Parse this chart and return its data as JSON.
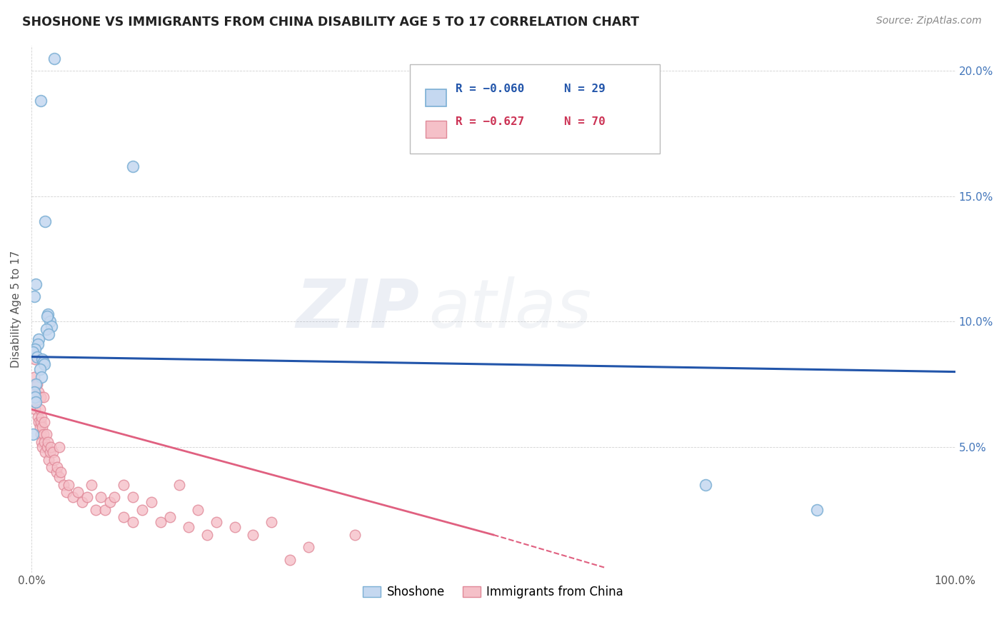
{
  "title": "SHOSHONE VS IMMIGRANTS FROM CHINA DISABILITY AGE 5 TO 17 CORRELATION CHART",
  "source": "Source: ZipAtlas.com",
  "ylabel": "Disability Age 5 to 17",
  "xlim": [
    0,
    100
  ],
  "ylim": [
    0,
    21
  ],
  "ytick_values": [
    0,
    5,
    10,
    15,
    20
  ],
  "ytick_labels": [
    "",
    "5.0%",
    "10.0%",
    "15.0%",
    "20.0%"
  ],
  "xtick_values": [
    0,
    100
  ],
  "xtick_labels": [
    "0.0%",
    "100.0%"
  ],
  "legend_blue_r": "R = −0.060",
  "legend_blue_n": "N = 29",
  "legend_pink_r": "R = −0.627",
  "legend_pink_n": "N = 70",
  "legend_label_blue": "Shoshone",
  "legend_label_pink": "Immigrants from China",
  "watermark_zip": "ZIP",
  "watermark_atlas": "atlas",
  "blue_dot_face": "#C5D8F0",
  "blue_dot_edge": "#7BAFD4",
  "pink_dot_face": "#F5C0C8",
  "pink_dot_edge": "#E08898",
  "line_blue_color": "#2255AA",
  "line_pink_color": "#E06080",
  "blue_line_x0": 0,
  "blue_line_y0": 8.6,
  "blue_line_x1": 100,
  "blue_line_y1": 8.0,
  "pink_line_x0": 0,
  "pink_line_y0": 6.5,
  "pink_line_x1_solid": 50,
  "pink_line_y1_solid": 1.5,
  "pink_line_x1_dash": 62,
  "pink_line_y1_dash": 0.2,
  "shoshone_x": [
    2.5,
    1.0,
    11.0,
    1.5,
    0.5,
    0.3,
    1.8,
    2.0,
    1.7,
    2.2,
    1.6,
    1.9,
    0.8,
    0.7,
    0.4,
    0.2,
    0.6,
    1.2,
    1.3,
    1.4,
    0.9,
    1.1,
    0.5,
    0.3,
    0.4,
    0.5,
    0.2,
    73.0,
    85.0
  ],
  "shoshone_y": [
    20.5,
    18.8,
    16.2,
    14.0,
    11.5,
    11.0,
    10.3,
    10.0,
    10.2,
    9.8,
    9.7,
    9.5,
    9.3,
    9.1,
    8.9,
    8.8,
    8.6,
    8.5,
    8.4,
    8.3,
    8.1,
    7.8,
    7.5,
    7.2,
    7.0,
    6.8,
    5.5,
    3.5,
    2.5
  ],
  "china_x": [
    0.2,
    0.3,
    0.4,
    0.4,
    0.5,
    0.5,
    0.6,
    0.7,
    0.8,
    0.8,
    0.9,
    0.9,
    1.0,
    1.0,
    1.0,
    1.1,
    1.1,
    1.2,
    1.2,
    1.3,
    1.3,
    1.4,
    1.4,
    1.5,
    1.6,
    1.7,
    1.8,
    1.9,
    2.0,
    2.1,
    2.2,
    2.3,
    2.5,
    2.7,
    2.8,
    3.0,
    3.0,
    3.2,
    3.5,
    3.8,
    4.0,
    4.5,
    5.0,
    5.5,
    6.0,
    6.5,
    7.0,
    7.5,
    8.0,
    8.5,
    9.0,
    10.0,
    10.0,
    11.0,
    11.0,
    12.0,
    13.0,
    14.0,
    15.0,
    16.0,
    17.0,
    18.0,
    19.0,
    20.0,
    22.0,
    24.0,
    26.0,
    28.0,
    30.0,
    35.0
  ],
  "china_y": [
    7.2,
    7.8,
    6.5,
    8.5,
    7.0,
    6.8,
    7.5,
    6.2,
    6.0,
    7.2,
    5.8,
    6.5,
    5.5,
    6.0,
    7.0,
    5.2,
    6.2,
    5.0,
    5.8,
    7.0,
    5.5,
    5.2,
    6.0,
    4.8,
    5.5,
    5.0,
    5.2,
    4.5,
    4.8,
    5.0,
    4.2,
    4.8,
    4.5,
    4.0,
    4.2,
    3.8,
    5.0,
    4.0,
    3.5,
    3.2,
    3.5,
    3.0,
    3.2,
    2.8,
    3.0,
    3.5,
    2.5,
    3.0,
    2.5,
    2.8,
    3.0,
    2.2,
    3.5,
    2.0,
    3.0,
    2.5,
    2.8,
    2.0,
    2.2,
    3.5,
    1.8,
    2.5,
    1.5,
    2.0,
    1.8,
    1.5,
    2.0,
    0.5,
    1.0,
    1.5
  ]
}
